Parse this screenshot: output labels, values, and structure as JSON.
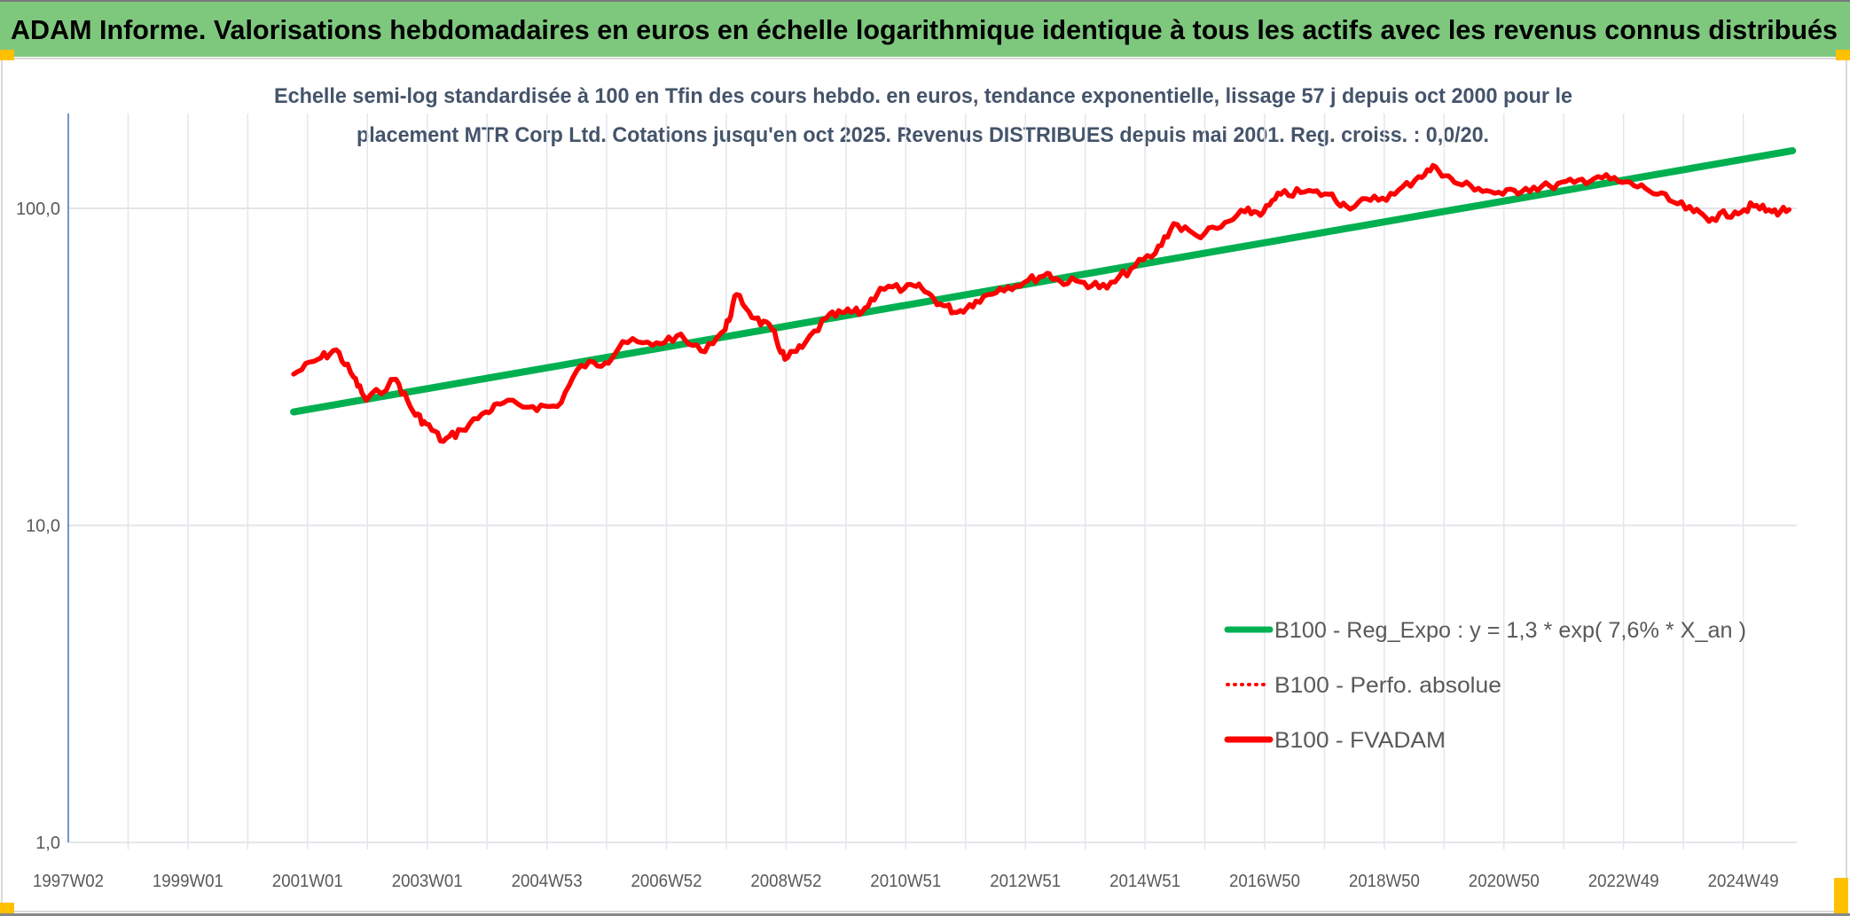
{
  "header": {
    "title": "ADAM Informe. Valorisations hebdomadaires en euros en échelle logarithmique identique à tous les actifs avec les revenus connus distribués",
    "bar_color": "#7ec87e",
    "corner_color": "#ffc000"
  },
  "chart_data": {
    "type": "line",
    "title_line1": "Echelle semi-log standardisée à 100 en Tfin des cours hebdo. en euros, tendance exponentielle, lissage 57 j depuis oct 2000 pour le",
    "title_line2": "placement MTR Corp Ltd. Cotations jusqu'en oct 2025. Revenus DISTRIBUES depuis mai 2001. Reg. croiss. : 0,0/20.",
    "y_scale": "log",
    "ylim": [
      1,
      200
    ],
    "y_ticks": [
      "1,0",
      "10,0",
      "100,0"
    ],
    "x_ticks": [
      "1997W02",
      "1999W01",
      "2001W01",
      "2003W01",
      "2004W53",
      "2006W52",
      "2008W52",
      "2010W51",
      "2012W51",
      "2014W51",
      "2016W50",
      "2018W50",
      "2020W50",
      "2022W49",
      "2024W49"
    ],
    "xlim": [
      "1997W02",
      "2025W48"
    ],
    "grid": true,
    "legend_position": "bottom-right",
    "series": [
      {
        "name": "B100 - Reg_Expo : y = 1,3 * exp( 7,6% *  X_an )",
        "color": "#00b050",
        "style": "solid",
        "x": [
          "2000W42",
          "2025W45"
        ],
        "y": [
          22.8,
          152
        ]
      },
      {
        "name": "B100 - Perfo. absolue",
        "color": "#ff0000",
        "style": "dotted",
        "x": [],
        "y": []
      },
      {
        "name": "B100 - FVADAM",
        "color": "#ff0000",
        "style": "solid",
        "x": [
          "2000W42",
          "2001W11",
          "2001W27",
          "2001W42",
          "2002W01",
          "2002W27",
          "2002W42",
          "2003W01",
          "2003W16",
          "2003W32",
          "2004W01",
          "2004W16",
          "2004W42",
          "2005W11",
          "2005W32",
          "2006W01",
          "2006W16",
          "2006W42",
          "2007W11",
          "2007W32",
          "2008W01",
          "2008W11",
          "2008W27",
          "2008W42",
          "2009W01",
          "2009W16",
          "2009W37",
          "2010W01",
          "2010W16",
          "2010W32",
          "2011W01",
          "2011W16",
          "2011W32",
          "2011W47",
          "2012W11",
          "2012W32",
          "2013W01",
          "2013W21",
          "2013W32",
          "2014W01",
          "2014W21",
          "2014W42",
          "2015W11",
          "2015W27",
          "2015W47",
          "2016W16",
          "2016W37",
          "2017W01",
          "2017W16",
          "2017W37",
          "2018W06",
          "2018W21",
          "2018W42",
          "2019W11",
          "2019W32",
          "2019W47",
          "2020W11",
          "2020W32",
          "2021W01",
          "2021W21",
          "2021W42",
          "2022W11",
          "2022W32",
          "2023W01",
          "2023W21",
          "2023W42",
          "2024W11",
          "2024W27",
          "2024W47",
          "2025W11",
          "2025W27",
          "2025W42"
        ],
        "y": [
          30,
          33.4,
          35.8,
          29.4,
          24.8,
          28.9,
          22.8,
          20.9,
          18.4,
          20,
          22.8,
          24.3,
          23.7,
          23.7,
          32,
          32.6,
          38,
          37,
          39.6,
          35.5,
          41.4,
          53.5,
          45,
          41.4,
          33.4,
          36.4,
          45,
          47,
          47,
          56,
          56,
          56,
          50,
          47,
          51,
          56,
          58.4,
          62.4,
          59,
          58.4,
          56,
          64.6,
          72.2,
          89.5,
          82,
          87.2,
          97.5,
          97.5,
          110.8,
          112.7,
          110.8,
          101.7,
          106,
          110.8,
          126,
          135,
          120.7,
          115.7,
          110.8,
          115.7,
          117.6,
          120.7,
          126,
          120.7,
          115.7,
          106,
          97.5,
          93,
          97.5,
          101.7,
          97.5,
          99.1
        ]
      }
    ]
  }
}
